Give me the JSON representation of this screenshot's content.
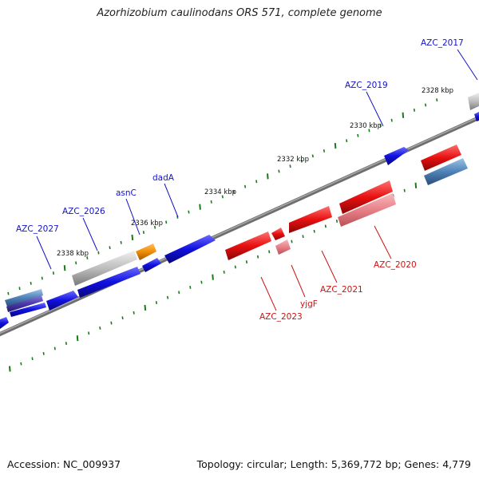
{
  "title": "Azorhizobium caulinodans ORS 571, complete genome",
  "footer": {
    "accession": "Accession: NC_009937",
    "summary": "Topology: circular; Length: 5,369,772 bp; Genes: 4,779"
  },
  "colors": {
    "forward_gene": "#1010e0",
    "reverse_gene": "#e81010",
    "reverse_pale": "#e88088",
    "gray_gene": "#bdbdbd",
    "orange_gene": "#f08c00",
    "steel_gene": "#4f82b8",
    "backbone": "#6e6e6e",
    "tick": "#1a7a1a"
  },
  "scale_labels": [
    "2328 kbp",
    "2330 kbp",
    "2332 kbp",
    "2334 kbp",
    "2336 kbp",
    "2338 kbp"
  ],
  "gene_labels": [
    {
      "text": "AZC_2017",
      "strand": "forward"
    },
    {
      "text": "AZC_2019",
      "strand": "forward"
    },
    {
      "text": "dadA",
      "strand": "forward"
    },
    {
      "text": "asnC",
      "strand": "forward"
    },
    {
      "text": "AZC_2026",
      "strand": "forward"
    },
    {
      "text": "AZC_2027",
      "strand": "forward"
    },
    {
      "text": "AZC_2020",
      "strand": "reverse"
    },
    {
      "text": "AZC_2021",
      "strand": "reverse"
    },
    {
      "text": "yjgF",
      "strand": "reverse"
    },
    {
      "text": "AZC_2023",
      "strand": "reverse"
    }
  ]
}
